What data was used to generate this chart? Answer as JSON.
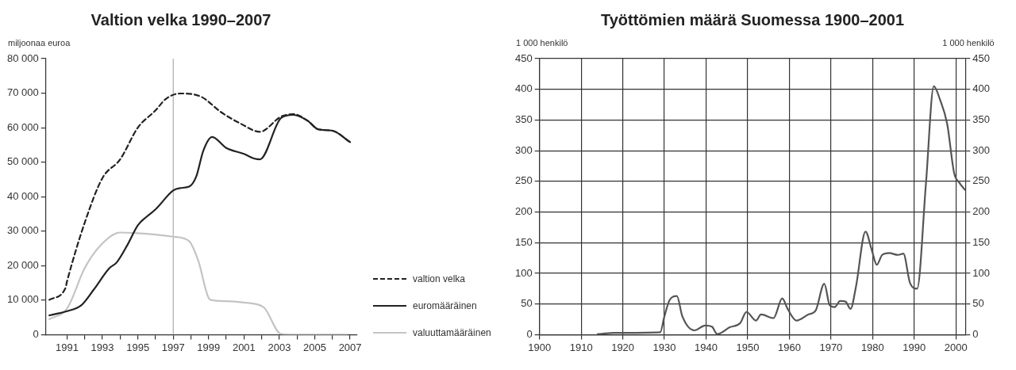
{
  "chart_data": [
    {
      "type": "line",
      "title": "Valtion velka 1990–2007",
      "ylabel": "miljoonaa euroa",
      "xlim": [
        1989.8,
        2007.4
      ],
      "xticks": [
        1991,
        {
          "value": 1992,
          "label": null
        },
        1993,
        {
          "value": 1994,
          "label": null
        },
        1995,
        {
          "value": 1996,
          "label": null
        },
        1997,
        {
          "value": 1998,
          "label": null
        },
        1999,
        {
          "value": 2000,
          "label": null
        },
        2001,
        {
          "value": 2002,
          "label": null
        },
        2003,
        {
          "value": 2004,
          "label": null
        },
        2005,
        {
          "value": 2006,
          "label": null
        },
        2007
      ],
      "ylim": [
        0,
        80000
      ],
      "yticks": [
        0,
        {
          "value": 10000,
          "label": "10 000"
        },
        {
          "value": 20000,
          "label": "20 000"
        },
        {
          "value": 30000,
          "label": "30 000"
        },
        {
          "value": 40000,
          "label": "40 000"
        },
        {
          "value": 50000,
          "label": "50 000"
        },
        {
          "value": 60000,
          "label": "60 000"
        },
        {
          "value": 70000,
          "label": "70 000"
        },
        {
          "value": 80000,
          "label": "80 000"
        }
      ],
      "legend": "bottom right",
      "ref_lines": [
        {
          "axis": "x",
          "value": 1997,
          "color": "#9a9a9a"
        }
      ],
      "series": [
        {
          "name": "valtion velka",
          "color": "#222222",
          "line_style": "dashed",
          "x": [
            1990,
            1990.9,
            1991,
            1992,
            1993,
            1994,
            1995,
            1996,
            1996.6,
            1997.4,
            1998.6,
            1999.7,
            2000.8,
            2001.9,
            2003.1,
            2003.8,
            2004.6,
            2005.2,
            2006,
            2007
          ],
          "values": [
            10100,
            13400,
            15500,
            32500,
            45400,
            50800,
            60000,
            65000,
            68400,
            69900,
            68900,
            64500,
            61200,
            58800,
            63200,
            63900,
            62000,
            59500,
            59100,
            55800
          ]
        },
        {
          "name": "euromääräinen",
          "color": "#222222",
          "line_style": "solid",
          "x": [
            1990,
            1991,
            1991.8,
            1992.5,
            1993.4,
            1993.8,
            1994.4,
            1995,
            1995.5,
            1996,
            1997,
            1997.4,
            1997.9,
            1998.3,
            1998.7,
            1999.2,
            2000,
            2001,
            2001.6,
            2001.9,
            2003.1,
            2003.8,
            2004.6,
            2005.2,
            2006,
            2007
          ],
          "values": [
            5600,
            6800,
            8500,
            13000,
            19300,
            20900,
            25900,
            31700,
            34200,
            36300,
            41800,
            42500,
            42900,
            45800,
            53300,
            57300,
            54100,
            52400,
            51000,
            50800,
            62800,
            63700,
            62000,
            59500,
            59100,
            55800
          ]
        },
        {
          "name": "valuuttamääräinen",
          "color": "#c4c4c4",
          "line_style": "solid",
          "x": [
            1990,
            1991,
            1992,
            1992.9,
            1994,
            1995,
            1996,
            1997,
            1997.9,
            1998.4,
            1999.1,
            2000,
            2001,
            2002.1,
            2003.1,
            2004.2,
            2006.8
          ],
          "values": [
            4500,
            7600,
            19300,
            25900,
            29600,
            29400,
            29000,
            28400,
            27100,
            21700,
            10100,
            9700,
            9300,
            8000,
            200,
            0,
            0
          ]
        }
      ]
    },
    {
      "type": "line",
      "title": "Työttömien määrä Suomessa 1900–2001",
      "ylabel": "1 000 henkilö",
      "y2label": "1 000 henkilö",
      "xlim": [
        1900,
        2002.3
      ],
      "xticks": [
        1900,
        1910,
        1920,
        1930,
        1940,
        1950,
        1960,
        1970,
        1980,
        1990,
        2000
      ],
      "ylim": [
        0,
        450
      ],
      "yticks": [
        0,
        50,
        100,
        150,
        200,
        250,
        300,
        350,
        400,
        450
      ],
      "y2lim": [
        0,
        450
      ],
      "y2ticks": [
        0,
        50,
        100,
        150,
        200,
        250,
        300,
        350,
        400,
        450
      ],
      "grid": true,
      "series": [
        {
          "color": "#555555",
          "line_style": "solid",
          "x": [
            1914,
            1918,
            1929,
            1930,
            1931.3,
            1933,
            1934.3,
            1937.2,
            1939.8,
            1941.4,
            1942.7,
            1945.7,
            1948.2,
            1949.7,
            1952,
            1953.2,
            1956.2,
            1958.3,
            1959.6,
            1961.7,
            1964.6,
            1966.3,
            1968.4,
            1969.7,
            1970.9,
            1972.2,
            1973.5,
            1974.7,
            1976,
            1978.3,
            1979.8,
            1981,
            1982.3,
            1984,
            1986.1,
            1987.4,
            1989,
            1990.7,
            1992.8,
            1994.7,
            1996.2,
            1997.9,
            1999.6,
            2000.8,
            2002.2
          ],
          "values": [
            1,
            3,
            4,
            30,
            57,
            63,
            30,
            7,
            15,
            13,
            1,
            12,
            19,
            37,
            23,
            33,
            27,
            59,
            42,
            23,
            33,
            39,
            83,
            48,
            45,
            55,
            54,
            42,
            78,
            168,
            138,
            114,
            130,
            133,
            130,
            132,
            84,
            75,
            245,
            405,
            383,
            344,
            263,
            248,
            236
          ]
        }
      ]
    }
  ]
}
